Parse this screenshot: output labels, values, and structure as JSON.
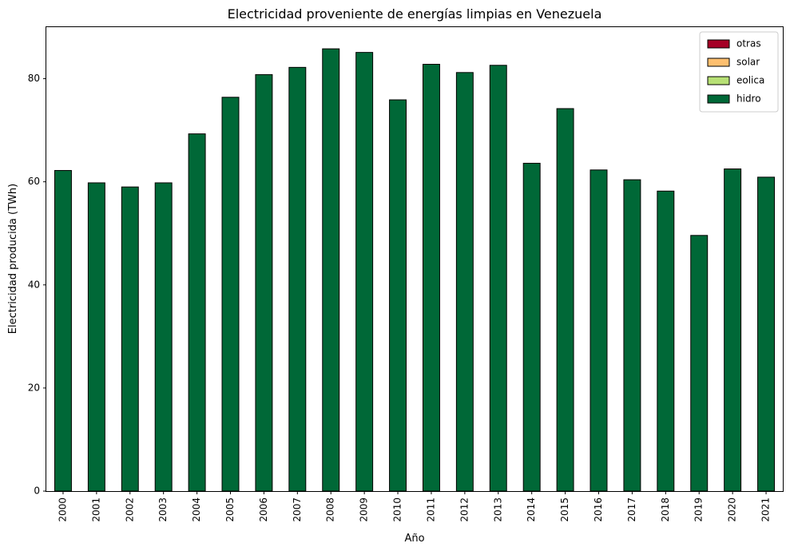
{
  "chart_data": {
    "type": "bar",
    "stacked": true,
    "title": "Electricidad proveniente de energías limpias en Venezuela",
    "xlabel": "Año",
    "ylabel": "Electricidad producida (TWh)",
    "ylim": [
      0,
      90
    ],
    "yticks": [
      0,
      20,
      40,
      60,
      80
    ],
    "grid": false,
    "legend_position": "top-right",
    "categories": [
      "2000",
      "2001",
      "2002",
      "2003",
      "2004",
      "2005",
      "2006",
      "2007",
      "2008",
      "2009",
      "2010",
      "2011",
      "2012",
      "2013",
      "2014",
      "2015",
      "2016",
      "2017",
      "2018",
      "2019",
      "2020",
      "2021"
    ],
    "series": [
      {
        "name": "hidro",
        "color": "#006837",
        "values": [
          62.2,
          59.8,
          59.0,
          59.8,
          69.3,
          76.4,
          80.8,
          82.2,
          85.8,
          85.1,
          75.9,
          82.8,
          81.2,
          82.6,
          63.6,
          74.2,
          62.3,
          60.4,
          58.2,
          49.6,
          62.5,
          60.9
        ]
      },
      {
        "name": "eolica",
        "color": "#b7e075",
        "values": [
          0,
          0,
          0,
          0,
          0,
          0,
          0,
          0,
          0,
          0,
          0,
          0,
          0,
          0,
          0,
          0,
          0,
          0,
          0,
          0,
          0,
          0
        ]
      },
      {
        "name": "solar",
        "color": "#fdbf6f",
        "values": [
          0,
          0,
          0,
          0,
          0,
          0,
          0,
          0,
          0,
          0,
          0,
          0,
          0,
          0,
          0,
          0,
          0,
          0,
          0,
          0,
          0,
          0
        ]
      },
      {
        "name": "otras",
        "color": "#a50026",
        "values": [
          0,
          0,
          0,
          0,
          0,
          0,
          0,
          0,
          0,
          0,
          0,
          0,
          0,
          0,
          0,
          0,
          0,
          0,
          0,
          0,
          0,
          0
        ]
      }
    ],
    "legend_order": [
      "otras",
      "solar",
      "eolica",
      "hidro"
    ]
  }
}
